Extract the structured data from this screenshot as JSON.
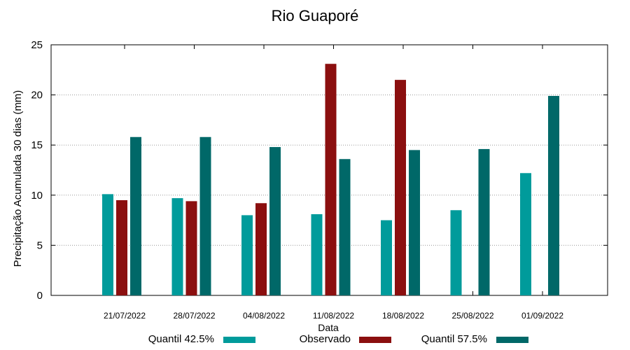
{
  "chart_data": {
    "type": "bar",
    "title": "Rio Guaporé",
    "xlabel": "Data",
    "ylabel": "Precipitação Acumulada 30 dias (mm)",
    "ylim": [
      0,
      25
    ],
    "yticks": [
      0,
      5,
      10,
      15,
      20,
      25
    ],
    "grid": true,
    "legend_position": "bottom",
    "categories": [
      "21/07/2022",
      "28/07/2022",
      "04/08/2022",
      "11/08/2022",
      "18/08/2022",
      "25/08/2022",
      "01/09/2022"
    ],
    "series": [
      {
        "name": "Quantil 42.5%",
        "color": "#009b9b",
        "values": [
          10.1,
          9.7,
          8.0,
          8.1,
          7.5,
          8.5,
          12.2
        ]
      },
      {
        "name": "Observado",
        "color": "#8b0f0f",
        "values": [
          9.5,
          9.4,
          9.2,
          23.1,
          21.5,
          null,
          null
        ]
      },
      {
        "name": "Quantil 57.5%",
        "color": "#006868",
        "values": [
          15.8,
          15.8,
          14.8,
          13.6,
          14.5,
          14.6,
          19.9
        ]
      }
    ]
  }
}
